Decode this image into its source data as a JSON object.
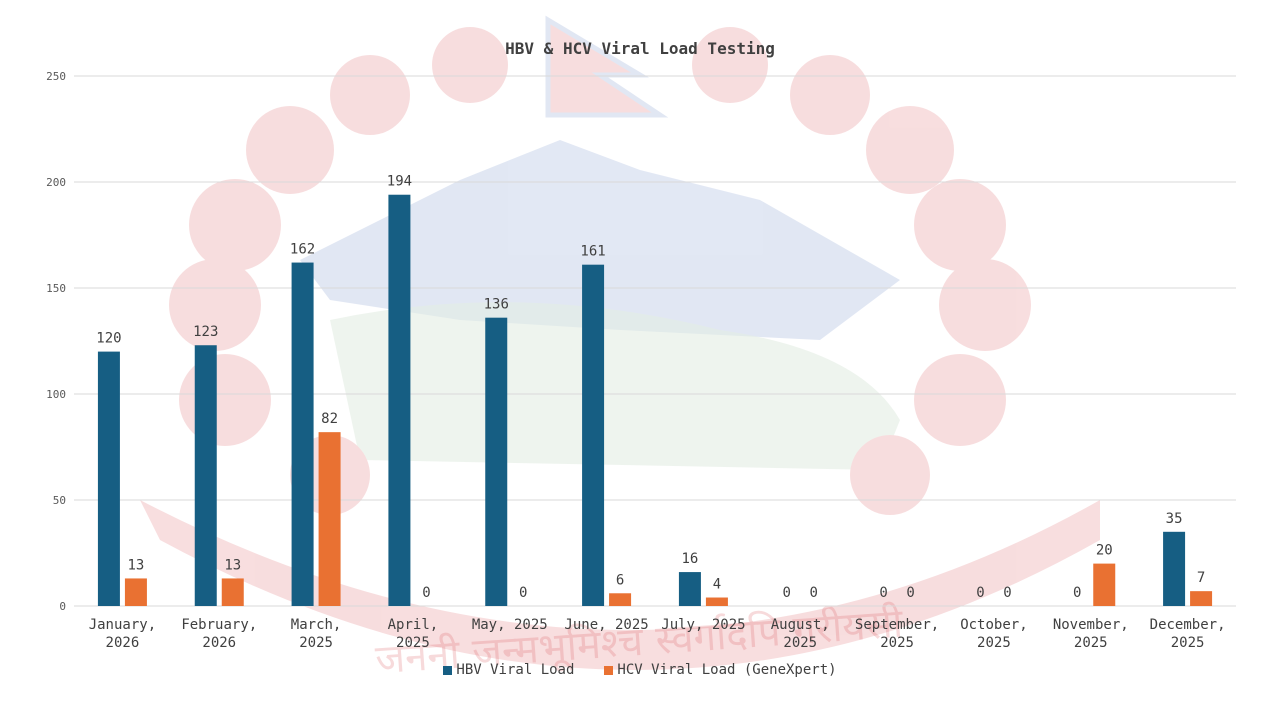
{
  "colors": {
    "hbv": "#165E83",
    "hcv": "#E97132",
    "grid": "#D9D9D9",
    "text": "#404040",
    "watermark_red": "#DC5A60",
    "watermark_blue": "#6E8CC8",
    "watermark_green": "#78AA78"
  },
  "watermark": {
    "description_icon": "nepal-emblem-watermark",
    "motto": "जननी जन्मभूमिश्च स्वर्गादपि गरीयसी"
  },
  "chart_data": {
    "type": "bar",
    "title": "HBV & HCV Viral Load Testing",
    "xlabel": "",
    "ylabel": "",
    "ylim": [
      0,
      250
    ],
    "yticks": [
      0,
      50,
      100,
      150,
      200,
      250
    ],
    "grid": true,
    "legend_position": "bottom",
    "categories": [
      [
        "January,",
        "2026"
      ],
      [
        "February,",
        "2026"
      ],
      [
        "March,",
        "2025"
      ],
      [
        "April,",
        "2025"
      ],
      [
        "May, 2025"
      ],
      [
        "June, 2025"
      ],
      [
        "July, 2025"
      ],
      [
        "August,",
        "2025"
      ],
      [
        "September,",
        "2025"
      ],
      [
        "October,",
        "2025"
      ],
      [
        "November,",
        "2025"
      ],
      [
        "December,",
        "2025"
      ]
    ],
    "series": [
      {
        "name": "HBV Viral Load",
        "values": [
          120,
          123,
          162,
          194,
          136,
          161,
          16,
          0,
          0,
          0,
          0,
          35
        ]
      },
      {
        "name": "HCV Viral Load (GeneXpert)",
        "values": [
          13,
          13,
          82,
          0,
          0,
          6,
          4,
          0,
          0,
          0,
          20,
          7
        ]
      }
    ]
  }
}
